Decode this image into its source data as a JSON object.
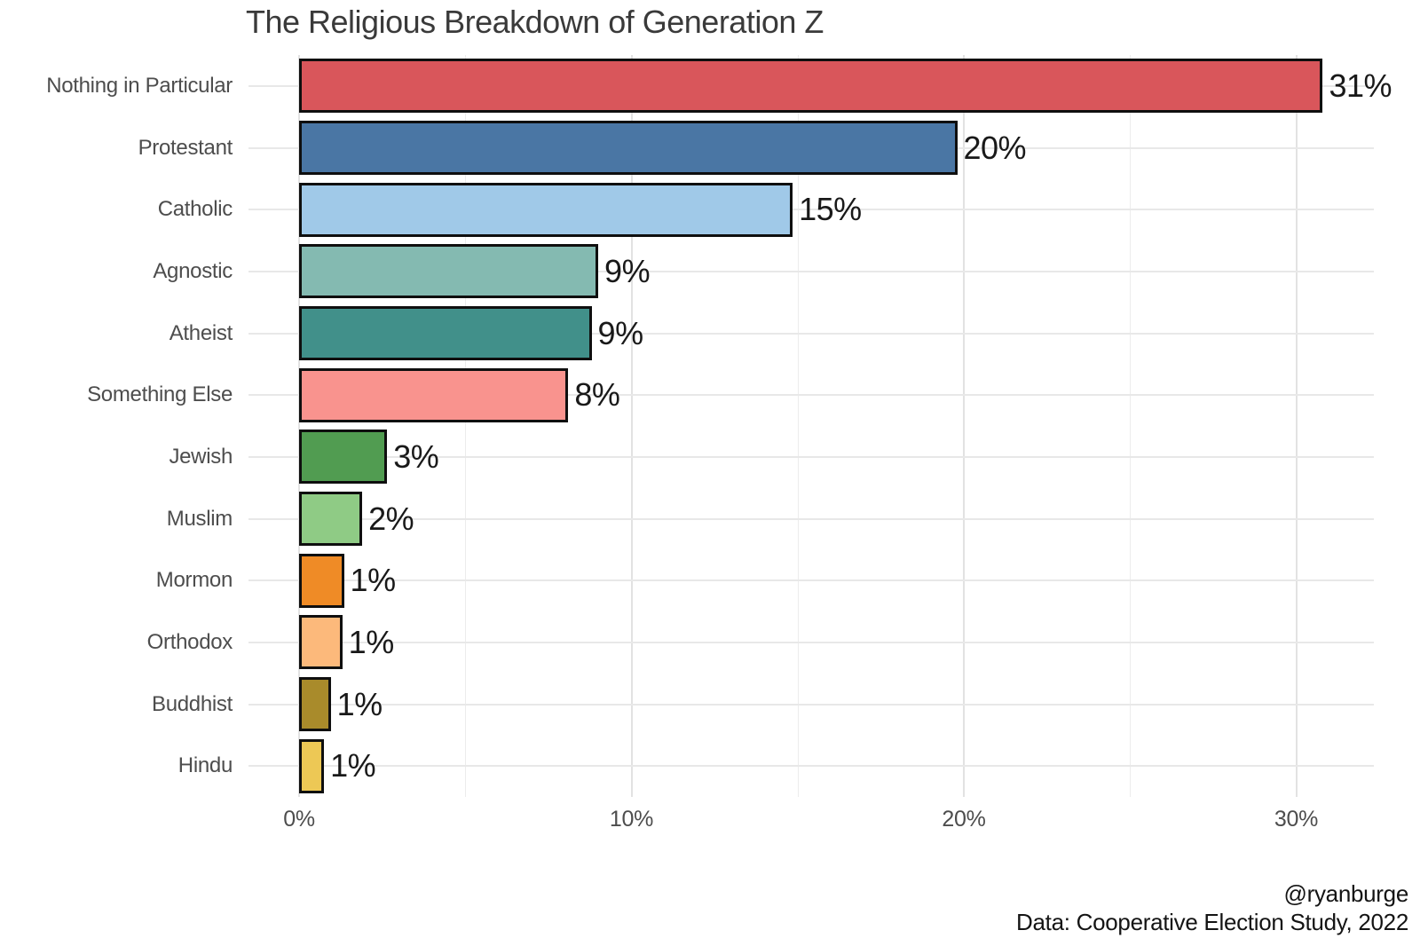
{
  "chart_data": {
    "type": "bar",
    "orientation": "horizontal",
    "title": "The Religious Breakdown of Generation Z",
    "categories": [
      "Nothing in Particular",
      "Protestant",
      "Catholic",
      "Agnostic",
      "Atheist",
      "Something Else",
      "Jewish",
      "Muslim",
      "Mormon",
      "Orthodox",
      "Buddhist",
      "Hindu"
    ],
    "values": [
      30.8,
      19.8,
      14.85,
      9.0,
      8.8,
      8.1,
      2.65,
      1.9,
      1.35,
      1.3,
      0.95,
      0.75
    ],
    "value_labels": [
      "31%",
      "20%",
      "15%",
      "9%",
      "9%",
      "8%",
      "3%",
      "2%",
      "1%",
      "1%",
      "1%",
      "1%"
    ],
    "bar_colors": [
      "#d9565b",
      "#4a76a4",
      "#a0c9e8",
      "#84bab1",
      "#41908a",
      "#f9938e",
      "#519c51",
      "#8fcb85",
      "#ef8b26",
      "#fcb97b",
      "#a98b2b",
      "#edc855"
    ],
    "xlabel": "",
    "ylabel": "",
    "x_tick_labels": [
      "0%",
      "10%",
      "20%",
      "30%"
    ],
    "x_tick_values": [
      0,
      10,
      20,
      30
    ],
    "x_minor_values": [
      5,
      15,
      25
    ],
    "xlim": [
      -1.55,
      32.3
    ],
    "grid": "light gray horizontal line per category and vertical lines every 5%",
    "legend": "none",
    "bar_outline_color": "#0f0f0f"
  },
  "caption": {
    "line1": "@ryanburge",
    "line2": "Data: Cooperative Election Study, 2022"
  },
  "colors": {
    "background": "#ffffff",
    "title_text": "#3a3a3a",
    "axis_text": "#4d4d4d",
    "value_text": "#191919",
    "grid_major": "#e2e2e2",
    "grid_minor": "#ececec"
  }
}
